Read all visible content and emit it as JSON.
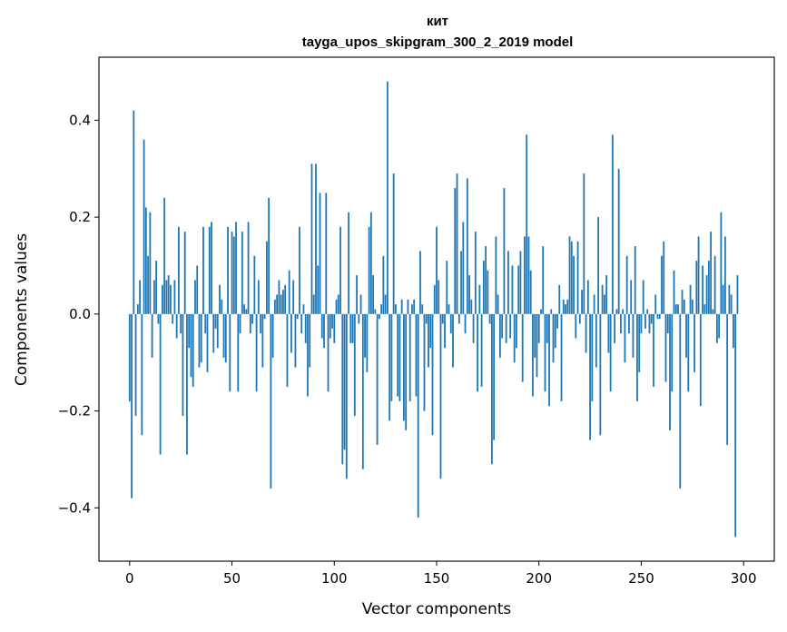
{
  "chart_data": {
    "type": "bar",
    "title": "кит",
    "subtitle": "tayga_upos_skipgram_300_2_2019 model",
    "xlabel": "Vector components",
    "ylabel": "Components values",
    "xlim": [
      -15,
      315
    ],
    "ylim": [
      -0.51,
      0.53
    ],
    "xticks": [
      0,
      50,
      100,
      150,
      200,
      250,
      300
    ],
    "yticks": [
      -0.4,
      -0.2,
      0.0,
      0.2,
      0.4
    ],
    "xtick_labels": [
      "0",
      "50",
      "100",
      "150",
      "200",
      "250",
      "300"
    ],
    "ytick_labels": [
      "−0.4",
      "−0.2",
      "0.0",
      "0.2",
      "0.4"
    ],
    "bar_color": "#1f77b4",
    "grid": false,
    "values": [
      -0.18,
      -0.38,
      0.42,
      -0.21,
      0.02,
      0.07,
      -0.25,
      0.36,
      0.22,
      0.12,
      0.21,
      -0.09,
      0.07,
      0.11,
      -0.02,
      -0.29,
      0.06,
      0.24,
      0.07,
      0.08,
      0.06,
      -0.02,
      0.07,
      -0.05,
      0.18,
      -0.04,
      -0.21,
      0.17,
      -0.29,
      -0.07,
      -0.13,
      -0.15,
      0.07,
      0.1,
      -0.11,
      -0.1,
      0.18,
      -0.04,
      -0.12,
      0.18,
      0.19,
      -0.08,
      -0.03,
      -0.07,
      0.06,
      0.03,
      -0.09,
      -0.1,
      0.18,
      -0.16,
      0.17,
      0.16,
      0.19,
      -0.16,
      -0.04,
      0.17,
      0.02,
      0.01,
      0.19,
      -0.04,
      -0.02,
      0.12,
      -0.16,
      0.07,
      -0.04,
      -0.11,
      -0.01,
      0.15,
      0.24,
      -0.36,
      -0.09,
      0.03,
      0.04,
      0.07,
      0.04,
      0.05,
      0.06,
      -0.15,
      0.09,
      -0.08,
      0.07,
      -0.11,
      -0.01,
      0.18,
      -0.04,
      0.02,
      -0.06,
      -0.17,
      -0.11,
      0.31,
      0.04,
      0.31,
      0.1,
      0.25,
      -0.05,
      -0.07,
      0.25,
      -0.16,
      -0.05,
      -0.03,
      -0.06,
      0.03,
      0.04,
      0.18,
      -0.31,
      -0.28,
      -0.34,
      0.21,
      -0.06,
      -0.06,
      -0.21,
      0.08,
      -0.02,
      0.04,
      -0.32,
      -0.09,
      -0.12,
      0.18,
      0.21,
      0.08,
      0.01,
      -0.27,
      -0.01,
      0.02,
      0.12,
      0.04,
      0.48,
      -0.22,
      -0.18,
      0.29,
      0.02,
      -0.17,
      -0.18,
      0.03,
      -0.22,
      -0.24,
      0.03,
      -0.18,
      0.02,
      0.03,
      -0.17,
      -0.42,
      0.13,
      0.02,
      -0.2,
      -0.02,
      -0.11,
      -0.07,
      -0.25,
      0.06,
      0.18,
      0.07,
      -0.34,
      -0.02,
      -0.07,
      0.11,
      0.02,
      -0.04,
      -0.11,
      0.26,
      0.29,
      -0.02,
      0.13,
      0.19,
      -0.04,
      0.28,
      0.08,
      0.03,
      -0.06,
      0.17,
      -0.16,
      0.06,
      -0.15,
      0.11,
      0.14,
      0.09,
      -0.02,
      -0.31,
      -0.26,
      0.16,
      0.04,
      -0.09,
      -0.05,
      0.26,
      -0.06,
      0.13,
      -0.05,
      0.1,
      -0.1,
      -0.07,
      0.1,
      0.13,
      -0.14,
      0.16,
      0.37,
      0.16,
      0.09,
      -0.17,
      -0.09,
      -0.13,
      -0.06,
      0.01,
      0.14,
      -0.16,
      -0.06,
      -0.19,
      0.01,
      -0.1,
      -0.07,
      -0.03,
      0.06,
      -0.18,
      0.03,
      0.02,
      0.03,
      0.16,
      0.15,
      0.12,
      -0.05,
      0.15,
      -0.02,
      0.05,
      0.29,
      -0.08,
      0.07,
      -0.26,
      -0.18,
      0.04,
      -0.11,
      0.2,
      -0.25,
      0.06,
      0.04,
      0.08,
      -0.08,
      -0.16,
      0.37,
      -0.06,
      0.01,
      0.3,
      -0.04,
      0.01,
      -0.1,
      0.12,
      -0.04,
      0.07,
      -0.09,
      0.14,
      -0.18,
      -0.12,
      -0.04,
      0.07,
      -0.03,
      0.01,
      -0.04,
      -0.02,
      -0.15,
      0.04,
      -0.01,
      -0.01,
      0.12,
      0.15,
      -0.14,
      -0.04,
      -0.24,
      -0.16,
      0.09,
      0.02,
      0.02,
      -0.36,
      0.05,
      0.03,
      -0.09,
      -0.16,
      0.06,
      0.03,
      -0.12,
      0.11,
      0.16,
      -0.19,
      0.1,
      0.02,
      0.08,
      0.11,
      0.17,
      0.01,
      0.12,
      -0.06,
      -0.05,
      0.21,
      0.06,
      0.16,
      -0.27,
      0.06,
      0.04,
      -0.07,
      -0.46,
      0.08
    ],
    "orientation": "vertical"
  }
}
